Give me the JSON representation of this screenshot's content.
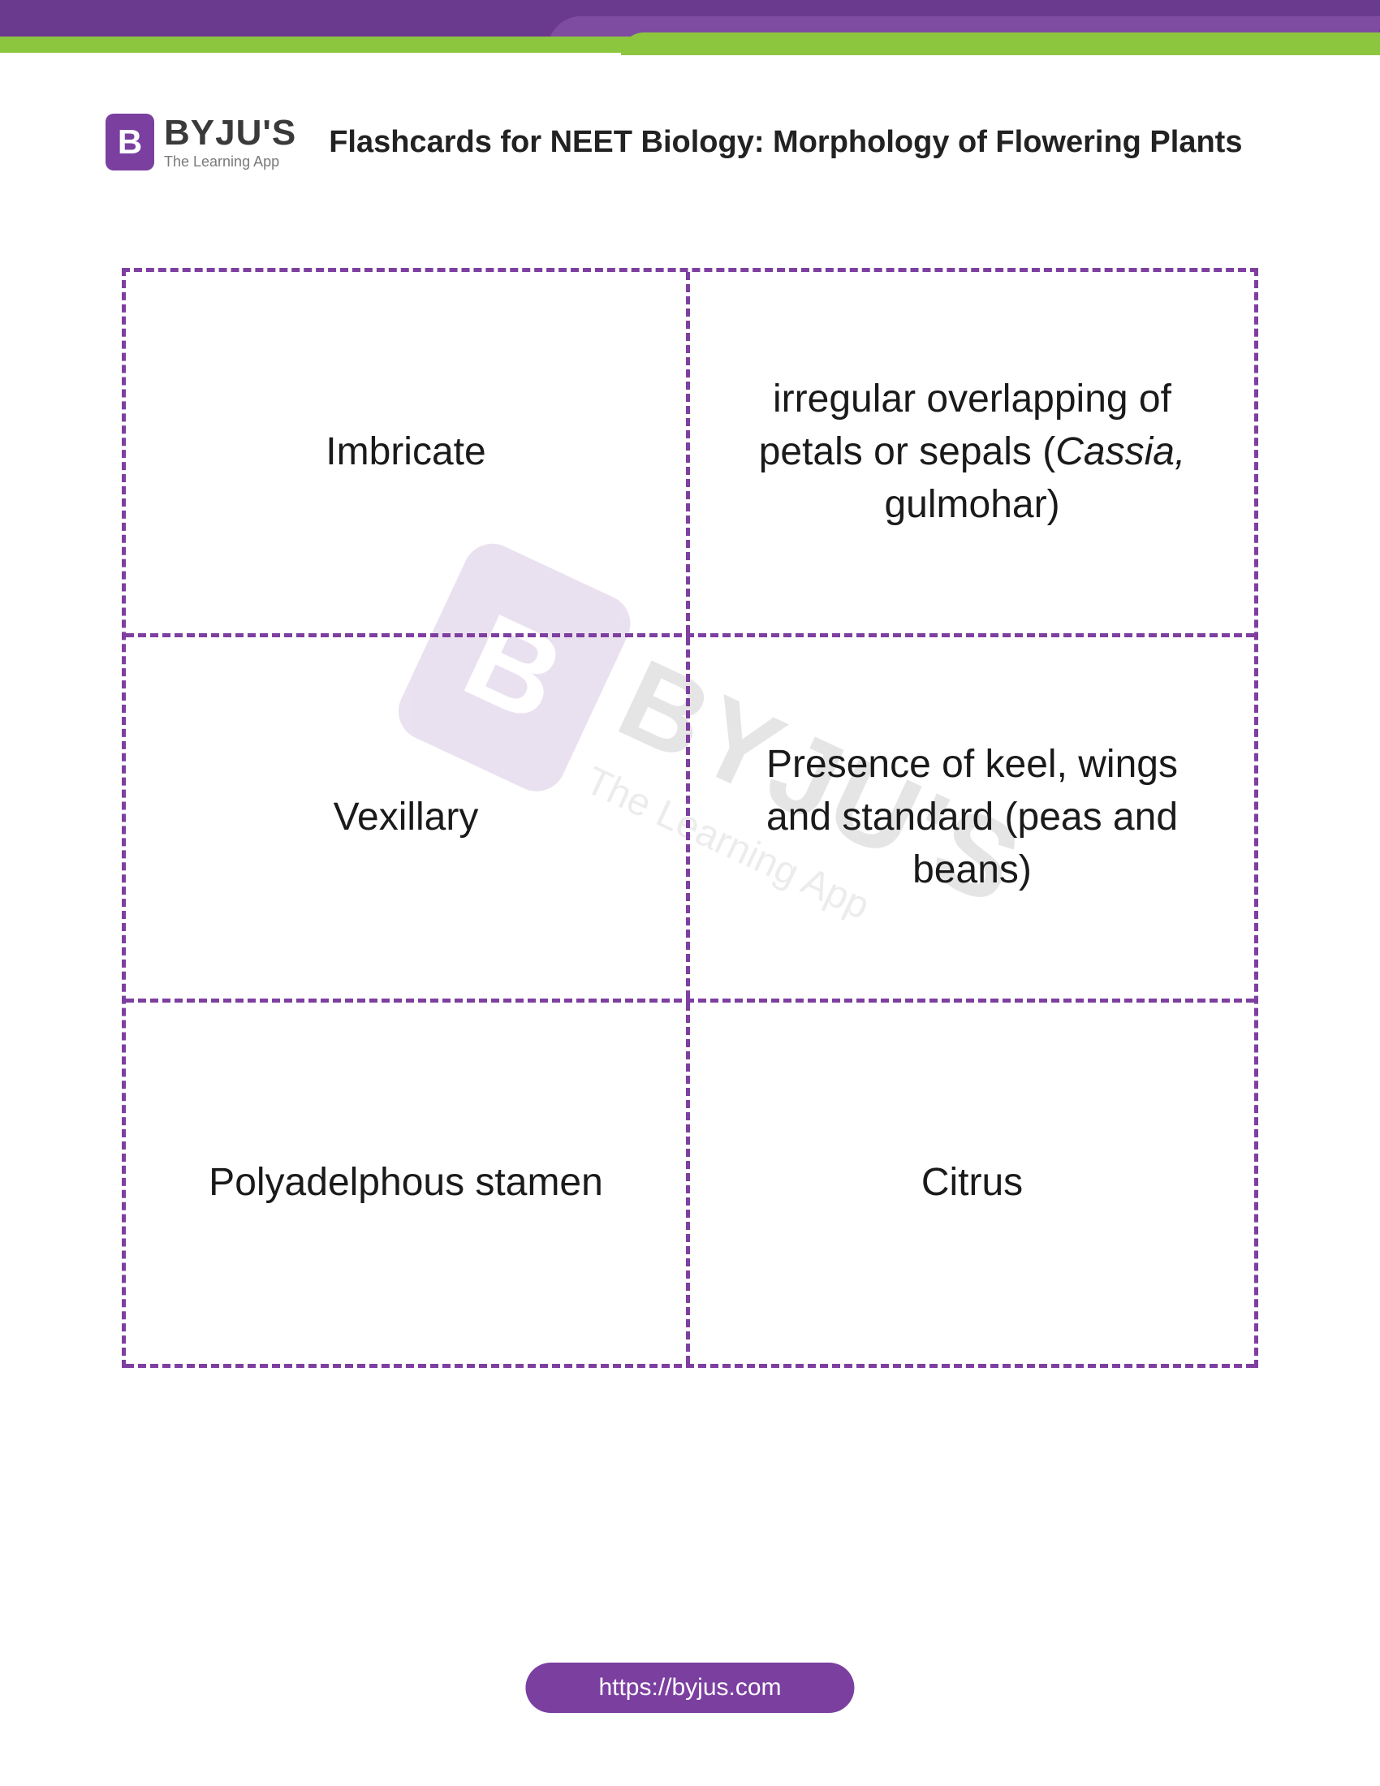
{
  "banner": {
    "purple": "#6a3a8f",
    "purple2": "#7e4ca0",
    "green": "#8cc63f"
  },
  "logo": {
    "badge_letter": "B",
    "brand": "BYJU'S",
    "tagline": "The Learning App",
    "badge_bg": "#7b3fa0"
  },
  "title": "Flashcards for NEET Biology: Morphology of Flowering Plants",
  "table": {
    "border_color": "#7e3fa0",
    "rows": [
      {
        "term": "Imbricate",
        "definition_pre": "irregular overlapping of petals or sepals (",
        "definition_italic": "Cassia,",
        "definition_post": " gulmohar)"
      },
      {
        "term": "Vexillary",
        "definition_pre": "Presence of keel, wings and standard (peas and beans)",
        "definition_italic": "",
        "definition_post": ""
      },
      {
        "term": "Polyadelphous stamen",
        "definition_pre": "Citrus",
        "definition_italic": "",
        "definition_post": ""
      }
    ]
  },
  "watermark": {
    "badge_letter": "B",
    "brand": "BYJU'S",
    "tagline": "The Learning App"
  },
  "footer": {
    "url": "https://byjus.com",
    "bg": "#7b3fa0"
  }
}
